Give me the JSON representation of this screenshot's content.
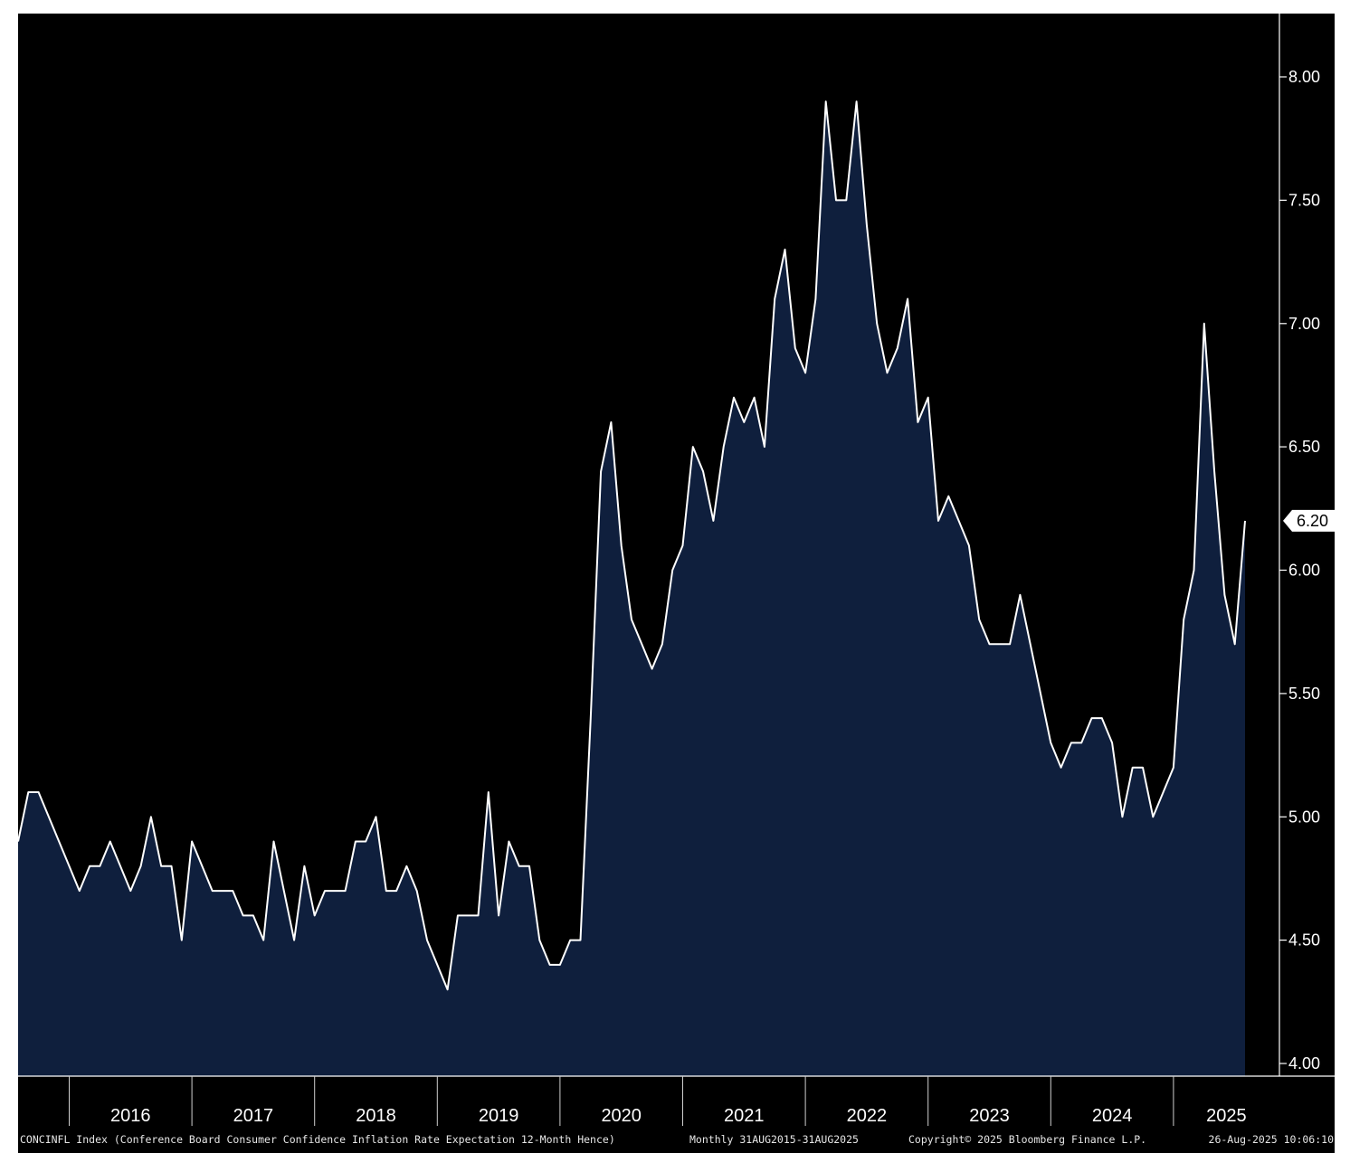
{
  "chart_data": {
    "type": "area",
    "x_start": "2015-08",
    "frequency": "monthly",
    "values": [
      4.9,
      5.1,
      5.1,
      5.0,
      4.9,
      4.8,
      4.7,
      4.8,
      4.8,
      4.9,
      4.8,
      4.7,
      4.8,
      5.0,
      4.8,
      4.8,
      4.5,
      4.9,
      4.8,
      4.7,
      4.7,
      4.7,
      4.6,
      4.6,
      4.5,
      4.9,
      4.7,
      4.5,
      4.8,
      4.6,
      4.7,
      4.7,
      4.7,
      4.9,
      4.9,
      5.0,
      4.7,
      4.7,
      4.8,
      4.7,
      4.5,
      4.4,
      4.3,
      4.6,
      4.6,
      4.6,
      5.1,
      4.6,
      4.9,
      4.8,
      4.8,
      4.5,
      4.4,
      4.4,
      4.5,
      4.5,
      5.4,
      6.4,
      6.6,
      6.1,
      5.8,
      5.7,
      5.6,
      5.7,
      6.0,
      6.1,
      6.5,
      6.4,
      6.2,
      6.5,
      6.7,
      6.6,
      6.7,
      6.5,
      7.1,
      7.3,
      6.9,
      6.8,
      7.1,
      7.9,
      7.5,
      7.5,
      7.9,
      7.4,
      7.0,
      6.8,
      6.9,
      7.1,
      6.6,
      6.7,
      6.2,
      6.3,
      6.2,
      6.1,
      5.8,
      5.7,
      5.7,
      5.7,
      5.9,
      5.7,
      5.5,
      5.3,
      5.2,
      5.3,
      5.3,
      5.4,
      5.4,
      5.3,
      5.0,
      5.2,
      5.2,
      5.0,
      5.1,
      5.2,
      5.8,
      6.0,
      7.0,
      6.4,
      5.9,
      5.7,
      6.2
    ],
    "y_ticks": [
      "4.00",
      "4.50",
      "5.00",
      "5.50",
      "6.00",
      "6.50",
      "7.00",
      "7.50",
      "8.00"
    ],
    "ylim": [
      4.0,
      8.0
    ],
    "x_ticks": [
      "2016",
      "2017",
      "2018",
      "2019",
      "2020",
      "2021",
      "2022",
      "2023",
      "2024",
      "2025"
    ],
    "last_value_label": "6.20",
    "y_axis_side": "right",
    "grid": false,
    "colors": {
      "background": "#000000",
      "fill": "#0f1f3d",
      "line": "#ffffff",
      "text": "#ffffff"
    }
  },
  "footer": {
    "description": "CONCINFL Index (Conference Board Consumer Confidence Inflation Rate Expectation 12-Month Hence)",
    "period": "Monthly 31AUG2015-31AUG2025",
    "copyright": "Copyright© 2025 Bloomberg Finance L.P.",
    "timestamp": "26-Aug-2025 10:06:10"
  }
}
